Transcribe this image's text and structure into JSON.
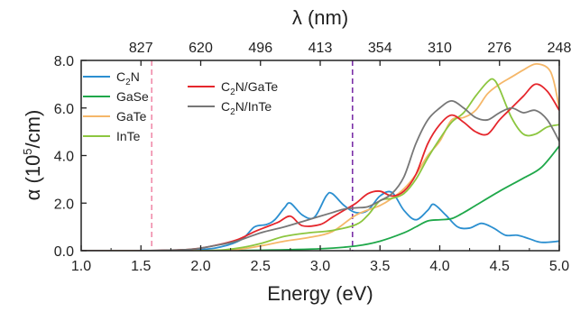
{
  "chart_data": {
    "type": "line",
    "title": "",
    "xlabel": "Energy (eV)",
    "ylabel_main": "α (10",
    "ylabel_exp": "5",
    "ylabel_unit": "/cm)",
    "top_xlabel": "λ (nm)",
    "xlim": [
      1.0,
      5.0
    ],
    "ylim": [
      0.0,
      8.0
    ],
    "x_ticks": [
      "1.0",
      "1.5",
      "2.0",
      "2.5",
      "3.0",
      "3.5",
      "4.0",
      "4.5",
      "5.0"
    ],
    "y_ticks": [
      "0.0",
      "2.0",
      "4.0",
      "6.0",
      "8.0"
    ],
    "top_ticks": [
      {
        "energy": 1.5,
        "label": "827"
      },
      {
        "energy": 2.0,
        "label": "620"
      },
      {
        "energy": 2.5,
        "label": "496"
      },
      {
        "energy": 3.0,
        "label": "413"
      },
      {
        "energy": 3.5,
        "label": "354"
      },
      {
        "energy": 4.0,
        "label": "310"
      },
      {
        "energy": 4.5,
        "label": "276"
      },
      {
        "energy": 5.0,
        "label": "248"
      }
    ],
    "vlines": [
      {
        "x": 1.59,
        "color": "#f08cab"
      },
      {
        "x": 3.27,
        "color": "#7b2fa8"
      }
    ],
    "grid": false,
    "legend_placement": "top-left",
    "series": [
      {
        "name": "C2N",
        "legend": {
          "main": "C",
          "sub": "2",
          "rest": "N"
        },
        "color": "#2b8fd0",
        "x": [
          1.0,
          1.5,
          2.0,
          2.2,
          2.35,
          2.45,
          2.55,
          2.62,
          2.7,
          2.75,
          2.85,
          2.95,
          3.05,
          3.1,
          3.2,
          3.3,
          3.4,
          3.5,
          3.6,
          3.7,
          3.8,
          3.9,
          3.95,
          4.05,
          4.15,
          4.25,
          4.35,
          4.45,
          4.55,
          4.65,
          4.75,
          4.85,
          5.0
        ],
        "y": [
          0.0,
          0.0,
          0.05,
          0.2,
          0.5,
          1.0,
          1.1,
          1.3,
          1.8,
          2.0,
          1.5,
          1.4,
          2.3,
          2.4,
          1.9,
          1.6,
          1.7,
          2.3,
          2.45,
          1.7,
          1.3,
          1.7,
          1.95,
          1.5,
          1.0,
          0.95,
          1.15,
          0.95,
          0.65,
          0.65,
          0.5,
          0.35,
          0.4
        ]
      },
      {
        "name": "GaSe",
        "legend": {
          "main": "GaSe",
          "sub": "",
          "rest": ""
        },
        "color": "#1fa84a",
        "x": [
          1.0,
          2.0,
          2.5,
          3.0,
          3.3,
          3.5,
          3.7,
          3.8,
          3.9,
          4.0,
          4.1,
          4.2,
          4.3,
          4.5,
          4.7,
          4.85,
          5.0
        ],
        "y": [
          0.0,
          0.0,
          0.02,
          0.08,
          0.2,
          0.4,
          0.75,
          1.0,
          1.25,
          1.3,
          1.35,
          1.6,
          1.9,
          2.5,
          3.05,
          3.5,
          4.4
        ]
      },
      {
        "name": "GaTe",
        "legend": {
          "main": "GaTe",
          "sub": "",
          "rest": ""
        },
        "color": "#f5b769",
        "x": [
          1.0,
          2.0,
          2.3,
          2.5,
          2.7,
          2.9,
          3.1,
          3.3,
          3.5,
          3.6,
          3.7,
          3.8,
          3.9,
          4.0,
          4.1,
          4.2,
          4.3,
          4.4,
          4.5,
          4.6,
          4.7,
          4.8,
          4.9,
          4.95,
          5.0
        ],
        "y": [
          0.0,
          0.0,
          0.05,
          0.2,
          0.4,
          0.55,
          0.8,
          1.5,
          1.9,
          2.2,
          2.6,
          3.2,
          4.0,
          4.6,
          5.5,
          5.6,
          5.9,
          6.6,
          7.0,
          7.3,
          7.6,
          7.85,
          7.7,
          7.2,
          6.0
        ]
      },
      {
        "name": "InTe",
        "legend": {
          "main": "InTe",
          "sub": "",
          "rest": ""
        },
        "color": "#8cc63f",
        "x": [
          1.0,
          2.0,
          2.3,
          2.5,
          2.7,
          2.9,
          3.1,
          3.3,
          3.4,
          3.5,
          3.6,
          3.7,
          3.8,
          3.9,
          4.0,
          4.1,
          4.2,
          4.3,
          4.4,
          4.45,
          4.5,
          4.6,
          4.7,
          4.8,
          4.9,
          5.0
        ],
        "y": [
          0.0,
          0.0,
          0.1,
          0.3,
          0.6,
          0.75,
          0.85,
          1.1,
          1.5,
          2.1,
          2.2,
          2.4,
          3.0,
          3.9,
          4.7,
          5.4,
          5.8,
          6.5,
          7.1,
          7.2,
          6.8,
          5.6,
          4.9,
          4.9,
          5.2,
          5.3
        ]
      },
      {
        "name": "C2N/GaTe",
        "legend": {
          "main": "C",
          "sub": "2",
          "rest": "N/GaTe"
        },
        "color": "#e5262c",
        "x": [
          1.0,
          1.5,
          1.9,
          2.1,
          2.3,
          2.45,
          2.55,
          2.65,
          2.75,
          2.85,
          3.0,
          3.1,
          3.2,
          3.3,
          3.4,
          3.5,
          3.6,
          3.7,
          3.8,
          3.9,
          4.0,
          4.1,
          4.2,
          4.3,
          4.4,
          4.5,
          4.6,
          4.7,
          4.8,
          4.9,
          5.0
        ],
        "y": [
          0.0,
          0.0,
          0.05,
          0.2,
          0.45,
          0.8,
          1.0,
          1.2,
          1.45,
          1.05,
          1.1,
          1.4,
          1.7,
          2.0,
          2.4,
          2.5,
          2.3,
          2.5,
          3.2,
          4.5,
          5.3,
          5.7,
          5.4,
          5.0,
          4.9,
          5.5,
          6.0,
          6.5,
          7.0,
          6.7,
          5.9
        ]
      },
      {
        "name": "C2N/InTe",
        "legend": {
          "main": "C",
          "sub": "2",
          "rest": "N/InTe"
        },
        "color": "#777777",
        "x": [
          1.0,
          1.5,
          1.9,
          2.1,
          2.3,
          2.5,
          2.7,
          2.9,
          3.1,
          3.2,
          3.3,
          3.4,
          3.5,
          3.6,
          3.7,
          3.8,
          3.9,
          4.0,
          4.1,
          4.2,
          4.3,
          4.4,
          4.5,
          4.6,
          4.7,
          4.8,
          4.9,
          5.0
        ],
        "y": [
          0.0,
          0.0,
          0.05,
          0.2,
          0.4,
          0.75,
          1.0,
          1.3,
          1.6,
          1.75,
          1.8,
          1.85,
          2.1,
          2.4,
          3.1,
          4.5,
          5.5,
          6.0,
          6.3,
          6.0,
          5.6,
          5.5,
          5.8,
          6.0,
          5.8,
          5.9,
          5.5,
          4.6
        ]
      }
    ]
  }
}
